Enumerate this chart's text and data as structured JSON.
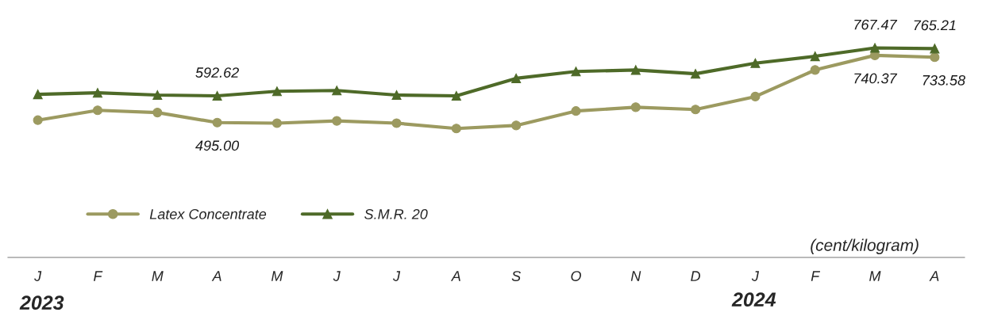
{
  "chart_data": {
    "type": "line",
    "categories": [
      "J",
      "F",
      "M",
      "A",
      "M",
      "J",
      "J",
      "A",
      "S",
      "O",
      "N",
      "D",
      "J",
      "F",
      "M",
      "A"
    ],
    "series": [
      {
        "name": "Latex Concentrate",
        "color": "#9c9a60",
        "marker": "circle",
        "values": [
          503.8,
          539.9,
          531.6,
          495.0,
          492.7,
          501.1,
          492.7,
          473.3,
          484.4,
          537.1,
          551.0,
          542.7,
          589.9,
          687.0,
          740.37,
          733.58
        ],
        "value_labels": [
          null,
          null,
          null,
          "495.00",
          null,
          null,
          null,
          null,
          null,
          null,
          null,
          null,
          null,
          null,
          "740.37",
          "733.58"
        ]
      },
      {
        "name": "S.M.R. 20",
        "color": "#4e6a28",
        "marker": "triangle",
        "values": [
          598.2,
          603.7,
          595.4,
          592.62,
          609.3,
          612.1,
          595.4,
          592.6,
          656.5,
          681.5,
          687.0,
          673.1,
          712.0,
          737.0,
          767.47,
          765.21
        ],
        "value_labels": [
          null,
          null,
          null,
          "592.62",
          null,
          null,
          null,
          null,
          null,
          null,
          null,
          null,
          null,
          null,
          "767.47",
          "765.21"
        ]
      }
    ],
    "annotations": [
      "(cent/kilogram)",
      "2023",
      "2024"
    ],
    "legend": "left",
    "grid": false
  }
}
